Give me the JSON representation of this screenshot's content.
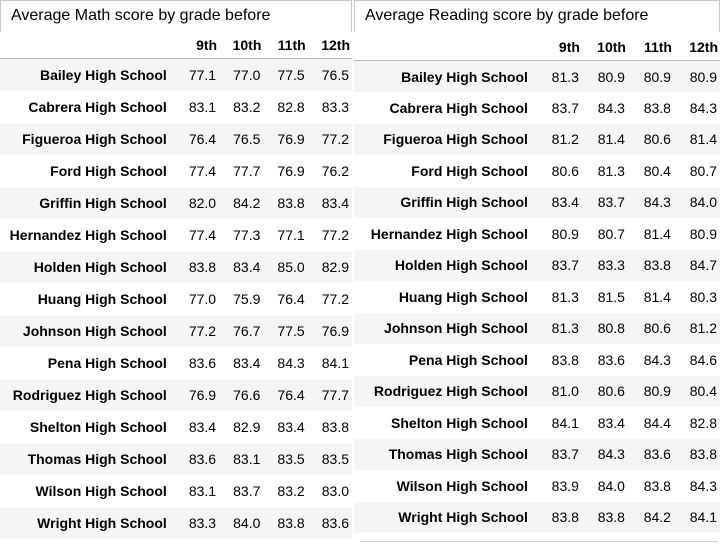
{
  "math_panel": {
    "title": "Average Math score by grade before",
    "columns": [
      "9th",
      "10th",
      "11th",
      "12th"
    ],
    "rows": [
      {
        "school": "Bailey High School",
        "values": [
          "77.1",
          "77.0",
          "77.5",
          "76.5"
        ]
      },
      {
        "school": "Cabrera High School",
        "values": [
          "83.1",
          "83.2",
          "82.8",
          "83.3"
        ]
      },
      {
        "school": "Figueroa High School",
        "values": [
          "76.4",
          "76.5",
          "76.9",
          "77.2"
        ]
      },
      {
        "school": "Ford High School",
        "values": [
          "77.4",
          "77.7",
          "76.9",
          "76.2"
        ]
      },
      {
        "school": "Griffin High School",
        "values": [
          "82.0",
          "84.2",
          "83.8",
          "83.4"
        ]
      },
      {
        "school": "Hernandez High School",
        "values": [
          "77.4",
          "77.3",
          "77.1",
          "77.2"
        ]
      },
      {
        "school": "Holden High School",
        "values": [
          "83.8",
          "83.4",
          "85.0",
          "82.9"
        ]
      },
      {
        "school": "Huang High School",
        "values": [
          "77.0",
          "75.9",
          "76.4",
          "77.2"
        ]
      },
      {
        "school": "Johnson High School",
        "values": [
          "77.2",
          "76.7",
          "77.5",
          "76.9"
        ]
      },
      {
        "school": "Pena High School",
        "values": [
          "83.6",
          "83.4",
          "84.3",
          "84.1"
        ]
      },
      {
        "school": "Rodriguez High School",
        "values": [
          "76.9",
          "76.6",
          "76.4",
          "77.7"
        ]
      },
      {
        "school": "Shelton High School",
        "values": [
          "83.4",
          "82.9",
          "83.4",
          "83.8"
        ]
      },
      {
        "school": "Thomas High School",
        "values": [
          "83.6",
          "83.1",
          "83.5",
          "83.5"
        ]
      },
      {
        "school": "Wilson High School",
        "values": [
          "83.1",
          "83.7",
          "83.2",
          "83.0"
        ]
      },
      {
        "school": "Wright High School",
        "values": [
          "83.3",
          "84.0",
          "83.8",
          "83.6"
        ]
      }
    ]
  },
  "reading_panel": {
    "title": "Average Reading score by grade before",
    "columns": [
      "9th",
      "10th",
      "11th",
      "12th"
    ],
    "rows": [
      {
        "school": "Bailey High School",
        "values": [
          "81.3",
          "80.9",
          "80.9",
          "80.9"
        ]
      },
      {
        "school": "Cabrera High School",
        "values": [
          "83.7",
          "84.3",
          "83.8",
          "84.3"
        ]
      },
      {
        "school": "Figueroa High School",
        "values": [
          "81.2",
          "81.4",
          "80.6",
          "81.4"
        ]
      },
      {
        "school": "Ford High School",
        "values": [
          "80.6",
          "81.3",
          "80.4",
          "80.7"
        ]
      },
      {
        "school": "Griffin High School",
        "values": [
          "83.4",
          "83.7",
          "84.3",
          "84.0"
        ]
      },
      {
        "school": "Hernandez High School",
        "values": [
          "80.9",
          "80.7",
          "81.4",
          "80.9"
        ]
      },
      {
        "school": "Holden High School",
        "values": [
          "83.7",
          "83.3",
          "83.8",
          "84.7"
        ]
      },
      {
        "school": "Huang High School",
        "values": [
          "81.3",
          "81.5",
          "81.4",
          "80.3"
        ]
      },
      {
        "school": "Johnson High School",
        "values": [
          "81.3",
          "80.8",
          "80.6",
          "81.2"
        ]
      },
      {
        "school": "Pena High School",
        "values": [
          "83.8",
          "83.6",
          "84.3",
          "84.6"
        ]
      },
      {
        "school": "Rodriguez High School",
        "values": [
          "81.0",
          "80.6",
          "80.9",
          "80.4"
        ]
      },
      {
        "school": "Shelton High School",
        "values": [
          "84.1",
          "83.4",
          "84.4",
          "82.8"
        ]
      },
      {
        "school": "Thomas High School",
        "values": [
          "83.7",
          "84.3",
          "83.6",
          "83.8"
        ]
      },
      {
        "school": "Wilson High School",
        "values": [
          "83.9",
          "84.0",
          "83.8",
          "84.3"
        ]
      },
      {
        "school": "Wright High School",
        "values": [
          "83.8",
          "83.8",
          "84.2",
          "84.1"
        ]
      }
    ]
  }
}
